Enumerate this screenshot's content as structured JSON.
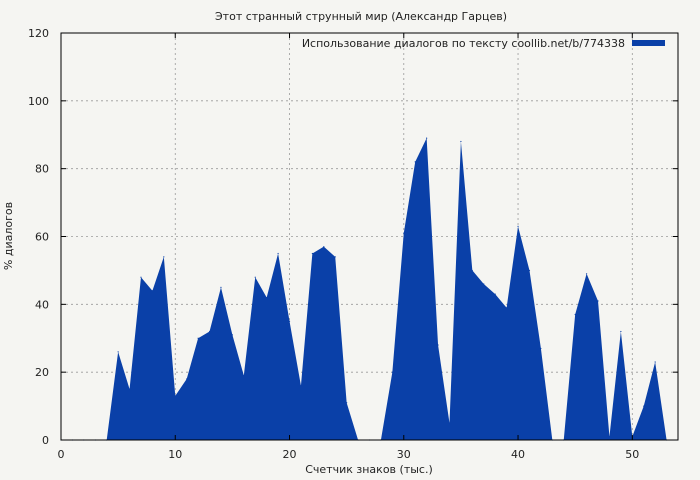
{
  "chart_data": {
    "type": "area",
    "title": "Этот странный струнный мир (Александр Гарцев)",
    "xlabel": "Счетчик знаков (тыс.)",
    "ylabel": "% диалогов",
    "xlim": [
      0,
      54
    ],
    "ylim": [
      0,
      120
    ],
    "xticks": [
      0,
      10,
      20,
      30,
      40,
      50
    ],
    "yticks": [
      0,
      20,
      40,
      60,
      80,
      100,
      120
    ],
    "grid": true,
    "legend_position": "top-right",
    "series": [
      {
        "name": "Использование диалогов по тексту coollib.net/b/774338",
        "color": "#0a40a8",
        "x": [
          0,
          1,
          2,
          3,
          4,
          5,
          6,
          7,
          8,
          9,
          10,
          11,
          12,
          13,
          14,
          15,
          16,
          17,
          18,
          19,
          20,
          21,
          22,
          23,
          24,
          25,
          26,
          27,
          28,
          29,
          30,
          31,
          32,
          33,
          34,
          35,
          36,
          37,
          38,
          39,
          40,
          41,
          42,
          43,
          44,
          45,
          46,
          47,
          48,
          49,
          50,
          51,
          52,
          53
        ],
        "y": [
          0,
          0,
          0,
          0,
          0,
          26,
          15,
          48,
          44,
          54,
          13,
          18,
          30,
          32,
          45,
          31,
          19,
          48,
          42,
          55,
          35,
          16,
          55,
          57,
          54,
          11,
          0,
          0,
          0,
          20,
          61,
          82,
          89,
          28,
          5,
          88,
          50,
          46,
          43,
          39,
          63,
          50,
          27,
          0,
          0,
          37,
          49,
          41,
          1,
          32,
          1,
          10,
          23,
          0
        ]
      }
    ]
  }
}
